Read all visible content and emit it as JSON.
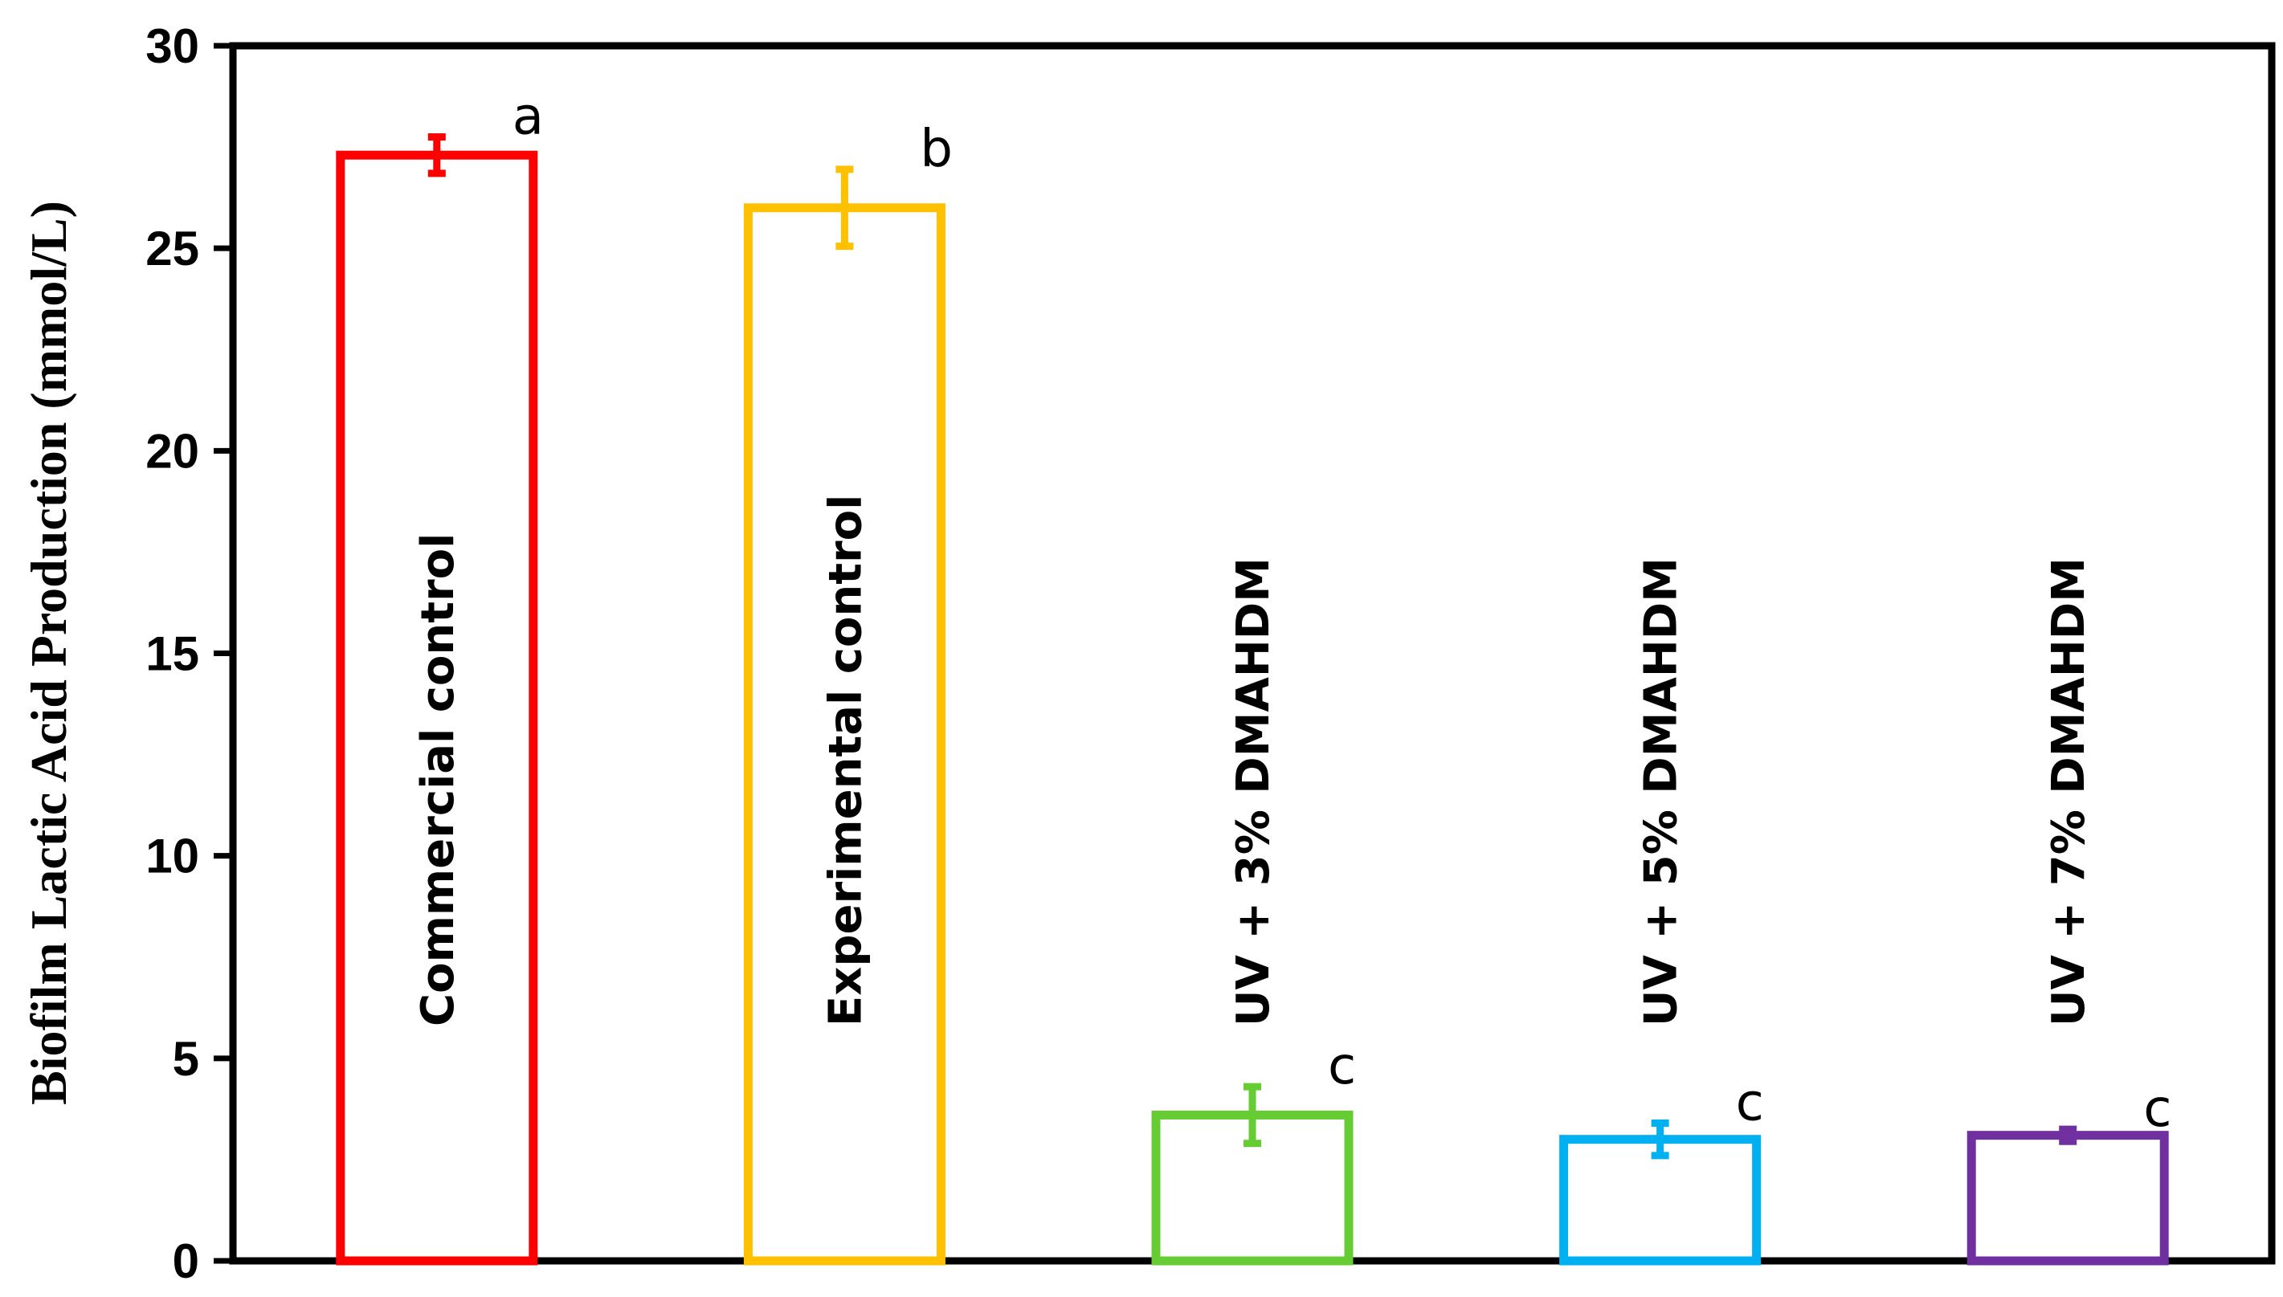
{
  "chart_data": {
    "type": "bar",
    "title": "",
    "xlabel": "",
    "ylabel": "Biofilm Lactic Acid Production (mmol/L)",
    "ylim": [
      0,
      30
    ],
    "yticks": [
      "0",
      "5",
      "10",
      "15",
      "20",
      "25",
      "30"
    ],
    "grid": false,
    "bar_style": "outline",
    "categories": [
      "Commercial control",
      "Experimental control",
      "UV + 3% DMAHDM",
      "UV + 5% DMAHDM",
      "UV + 7% DMAHDM"
    ],
    "values": [
      27.3,
      26.0,
      3.6,
      3.0,
      3.1
    ],
    "errors": [
      0.45,
      0.95,
      0.7,
      0.4,
      0.15
    ],
    "significance": [
      "a",
      "b",
      "c",
      "c",
      "c"
    ],
    "colors": [
      "#ff0000",
      "#ffc000",
      "#66cc33",
      "#00b0f0",
      "#7030a0"
    ]
  }
}
